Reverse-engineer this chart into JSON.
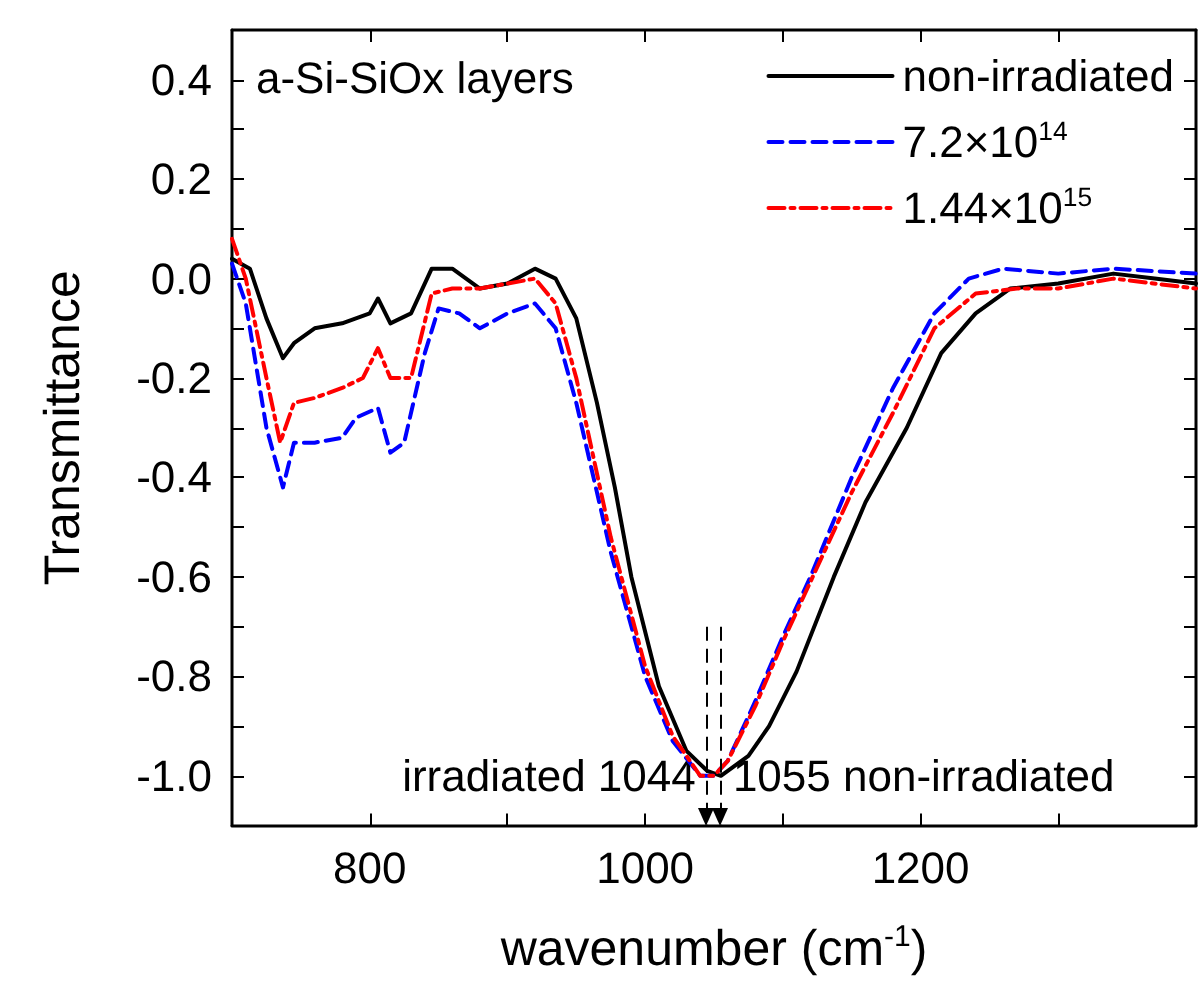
{
  "chart_data": {
    "type": "line",
    "xlabel": "wavenumber (cm$^{-1}$)",
    "ylabel": "Transmittance",
    "annotations": [
      "a-Si-SiOx layers"
    ],
    "xlim": [
      700,
      1400
    ],
    "xticks": [
      800,
      {
        "value": 900,
        "label": null
      },
      1000,
      {
        "value": 1100,
        "label": null
      },
      1200,
      {
        "value": 1300,
        "label": null
      }
    ],
    "ylim": [
      -1.1,
      0.5
    ],
    "yticks": [
      {
        "value": -1.0,
        "label": "-1.0"
      },
      {
        "value": -0.9,
        "label": null
      },
      {
        "value": -0.8,
        "label": "-0.8"
      },
      {
        "value": -0.7,
        "label": null
      },
      {
        "value": -0.6,
        "label": "-0.6"
      },
      {
        "value": -0.5,
        "label": null
      },
      {
        "value": -0.4,
        "label": "-0.4"
      },
      {
        "value": -0.3,
        "label": null
      },
      {
        "value": -0.2,
        "label": "-0.2"
      },
      {
        "value": -0.1,
        "label": null
      },
      {
        "value": 0.0,
        "label": "0.0"
      },
      {
        "value": 0.1,
        "label": null
      },
      {
        "value": 0.2,
        "label": "0.2"
      },
      {
        "value": 0.3,
        "label": null
      },
      {
        "value": 0.4,
        "label": "0.4"
      }
    ],
    "grid": false,
    "legend": "top right",
    "marker": "none",
    "ref_lines": [
      {
        "axis": "x",
        "value": 1044,
        "label": "irradiated 1044",
        "color": "#000000",
        "line_style": "dashed"
      },
      {
        "axis": "x",
        "value": 1055,
        "label": "1055 non-irradiated",
        "color": "#000000",
        "line_style": "dashed"
      }
    ],
    "series": [
      {
        "name": "non-irradiated",
        "color": "#000000",
        "line_style": "solid",
        "x": [
          700,
          713,
          725,
          737,
          745,
          760,
          780,
          800,
          806,
          815,
          830,
          845,
          860,
          880,
          900,
          920,
          935,
          950,
          965,
          978,
          990,
          1010,
          1030,
          1045,
          1055,
          1060,
          1075,
          1090,
          1110,
          1137,
          1160,
          1190,
          1215,
          1240,
          1265,
          1300,
          1340,
          1370,
          1400
        ],
        "values": [
          0.04,
          0.02,
          -0.08,
          -0.16,
          -0.13,
          -0.1,
          -0.09,
          -0.07,
          -0.04,
          -0.09,
          -0.07,
          0.02,
          0.02,
          -0.02,
          -0.01,
          0.02,
          0.0,
          -0.08,
          -0.25,
          -0.42,
          -0.6,
          -0.82,
          -0.95,
          -0.99,
          -1.0,
          -0.99,
          -0.96,
          -0.9,
          -0.79,
          -0.6,
          -0.45,
          -0.3,
          -0.15,
          -0.07,
          -0.02,
          -0.01,
          0.01,
          0.0,
          -0.01
        ]
      },
      {
        "name": "7.2×10$^{14}$",
        "color": "#0000ff",
        "line_style": "dashed",
        "x": [
          700,
          710,
          725,
          737,
          745,
          760,
          780,
          790,
          806,
          815,
          825,
          840,
          850,
          865,
          880,
          900,
          920,
          935,
          950,
          975,
          1000,
          1020,
          1040,
          1050,
          1060,
          1080,
          1100,
          1120,
          1150,
          1180,
          1210,
          1235,
          1260,
          1300,
          1340,
          1400
        ],
        "values": [
          0.03,
          -0.05,
          -0.3,
          -0.42,
          -0.33,
          -0.33,
          -0.32,
          -0.28,
          -0.26,
          -0.35,
          -0.33,
          -0.15,
          -0.06,
          -0.07,
          -0.1,
          -0.07,
          -0.05,
          -0.1,
          -0.25,
          -0.55,
          -0.8,
          -0.93,
          -1.0,
          -1.0,
          -0.97,
          -0.85,
          -0.72,
          -0.6,
          -0.4,
          -0.22,
          -0.07,
          0.0,
          0.02,
          0.01,
          0.02,
          0.01
        ]
      },
      {
        "name": "1.44×10$^{15}$",
        "color": "#ff0000",
        "line_style": "dashdot",
        "x": [
          700,
          710,
          725,
          735,
          745,
          760,
          780,
          795,
          806,
          815,
          830,
          845,
          860,
          880,
          900,
          920,
          935,
          950,
          975,
          1000,
          1020,
          1040,
          1050,
          1060,
          1080,
          1100,
          1120,
          1150,
          1180,
          1210,
          1240,
          1270,
          1300,
          1340,
          1400
        ],
        "values": [
          0.08,
          0.0,
          -0.2,
          -0.33,
          -0.25,
          -0.24,
          -0.22,
          -0.2,
          -0.14,
          -0.2,
          -0.2,
          -0.03,
          -0.02,
          -0.02,
          -0.01,
          0.0,
          -0.05,
          -0.2,
          -0.52,
          -0.78,
          -0.92,
          -1.0,
          -1.0,
          -0.97,
          -0.86,
          -0.73,
          -0.61,
          -0.43,
          -0.27,
          -0.1,
          -0.03,
          -0.02,
          -0.02,
          0.0,
          -0.02
        ]
      }
    ]
  }
}
